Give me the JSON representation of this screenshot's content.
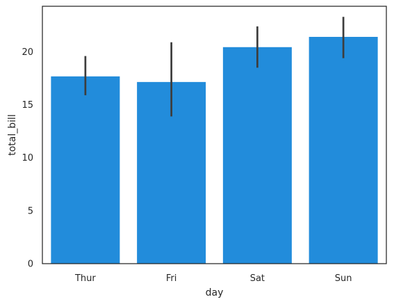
{
  "chart_data": {
    "type": "bar",
    "categories": [
      "Thur",
      "Fri",
      "Sat",
      "Sun"
    ],
    "values": [
      17.68,
      17.15,
      20.44,
      21.41
    ],
    "error_low": [
      15.9,
      13.9,
      18.5,
      19.4
    ],
    "error_high": [
      19.6,
      20.9,
      22.4,
      23.3
    ],
    "xlabel": "day",
    "ylabel": "total_bill",
    "ylim": [
      0,
      24.3
    ],
    "yticks": [
      0,
      5,
      10,
      15,
      20
    ],
    "grid": false,
    "bar_color": "#228CDB",
    "errorbar_color": "#3D3D3D"
  }
}
